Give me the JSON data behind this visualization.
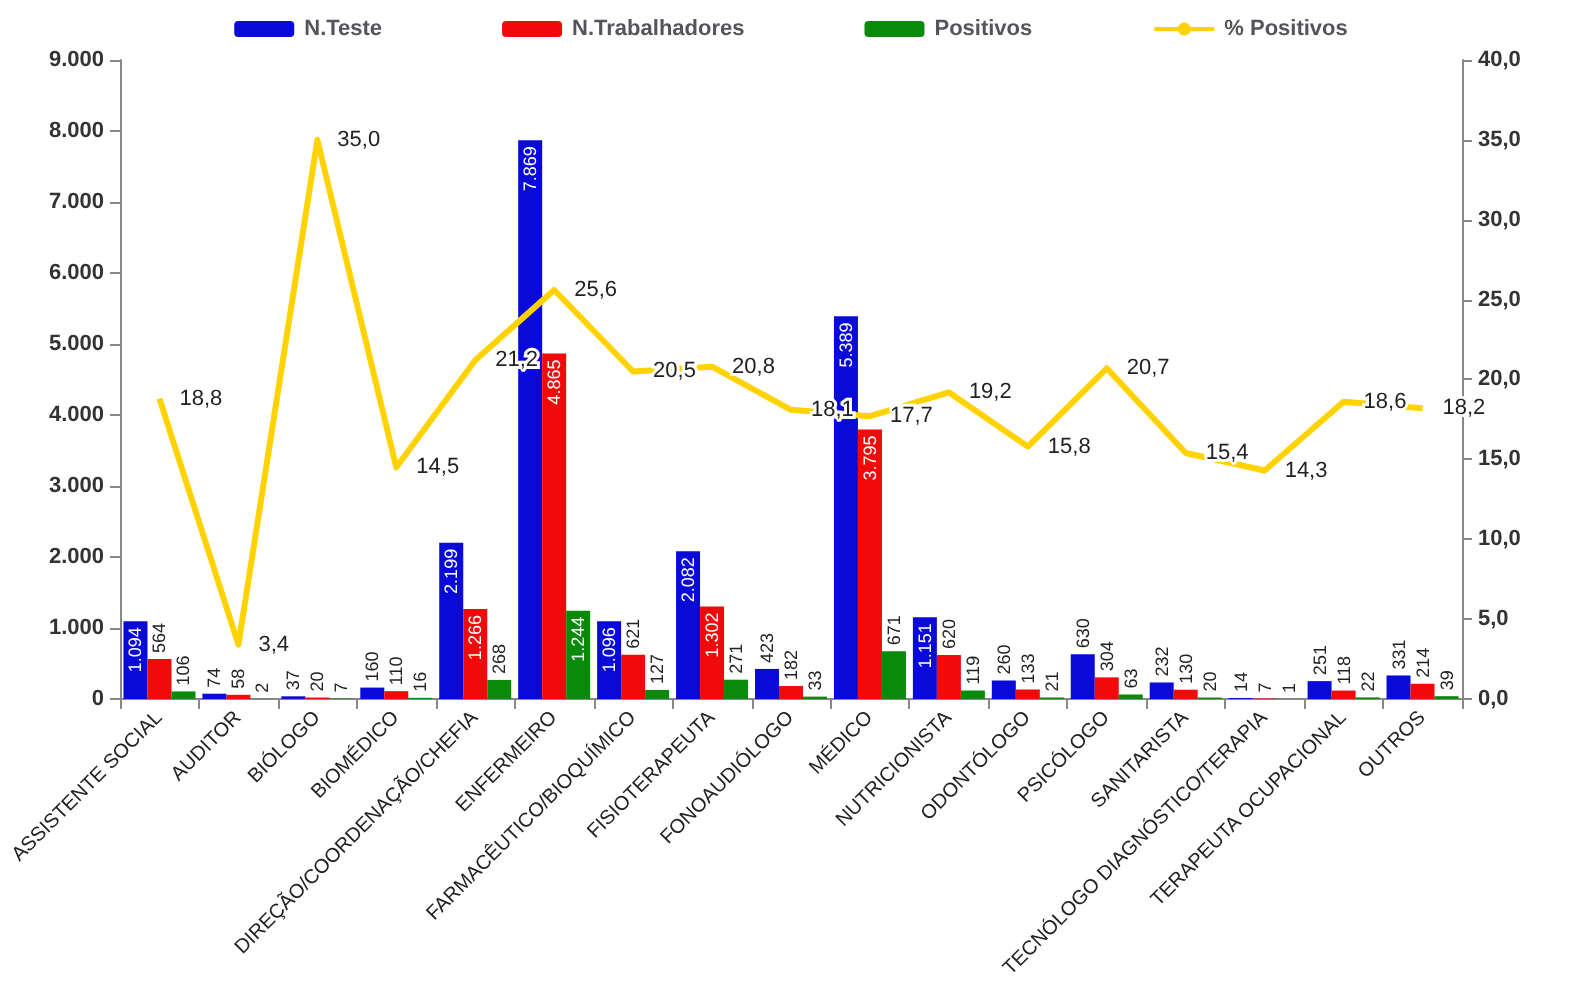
{
  "chart_data": {
    "type": "bar",
    "categories": [
      "ASSISTENTE SOCIAL",
      "AUDITOR",
      "BIÓLOGO",
      "BIOMÉDICO",
      "DIREÇÃO/COORDENAÇÃO/CHEFIA",
      "ENFERMEIRO",
      "FARMACÊUTICO/BIOQUÍMICO",
      "FISIOTERAPEUTA",
      "FONOAUDIÓLOGO",
      "MÉDICO",
      "NUTRICIONISTA",
      "ODONTÓLOGO",
      "PSICÓLOGO",
      "SANITARISTA",
      "TECNÓLOGO DIAGNÓSTICO/TERAPIA",
      "TERAPEUTA OCUPACIONAL",
      "OUTROS"
    ],
    "series": [
      {
        "name": "N.Teste",
        "color": "#0a0ad8",
        "values": [
          1094,
          74,
          37,
          160,
          2199,
          7869,
          1096,
          2082,
          423,
          5389,
          1151,
          260,
          630,
          232,
          14,
          251,
          331
        ],
        "value_labels": [
          "1.094",
          "74",
          "37",
          "160",
          "2.199",
          "7.869",
          "1.096",
          "2.082",
          "423",
          "5.389",
          "1.151",
          "260",
          "630",
          "232",
          "14",
          "251",
          "331"
        ]
      },
      {
        "name": "N.Trabalhadores",
        "color": "#f00a0a",
        "values": [
          564,
          58,
          20,
          110,
          1266,
          4865,
          621,
          1302,
          182,
          3795,
          620,
          133,
          304,
          130,
          7,
          118,
          214
        ],
        "value_labels": [
          "564",
          "58",
          "20",
          "110",
          "1.266",
          "4.865",
          "621",
          "1.302",
          "182",
          "3.795",
          "620",
          "133",
          "304",
          "130",
          "7",
          "118",
          "214"
        ]
      },
      {
        "name": "Positivos",
        "color": "#0a8a0a",
        "values": [
          106,
          2,
          7,
          16,
          268,
          1244,
          127,
          271,
          33,
          671,
          119,
          21,
          63,
          20,
          1,
          22,
          39
        ],
        "value_labels": [
          "106",
          "2",
          "7",
          "16",
          "268",
          "1.244",
          "127",
          "271",
          "33",
          "671",
          "119",
          "21",
          "63",
          "20",
          "1",
          "22",
          "39"
        ]
      },
      {
        "name": "% Positivos",
        "type": "line",
        "axis": "y2",
        "color": "#ffd200",
        "values": [
          18.8,
          3.4,
          35.0,
          14.5,
          21.2,
          25.6,
          20.5,
          20.8,
          18.1,
          17.7,
          19.2,
          15.8,
          20.7,
          15.4,
          14.3,
          18.6,
          18.2
        ],
        "value_labels": [
          "18,8",
          "3,4",
          "35,0",
          "14,5",
          "21,2",
          "25,6",
          "20,5",
          "20,8",
          "18,1",
          "17,7",
          "19,2",
          "15,8",
          "20,7",
          "15,4",
          "14,3",
          "18,6",
          "18,2"
        ]
      }
    ],
    "ylim": [
      0,
      9000
    ],
    "yticks": [
      {
        "value": 0,
        "label": "0"
      },
      {
        "value": 1000,
        "label": "1.000"
      },
      {
        "value": 2000,
        "label": "2.000"
      },
      {
        "value": 3000,
        "label": "3.000"
      },
      {
        "value": 4000,
        "label": "4.000"
      },
      {
        "value": 5000,
        "label": "5.000"
      },
      {
        "value": 6000,
        "label": "6.000"
      },
      {
        "value": 7000,
        "label": "7.000"
      },
      {
        "value": 8000,
        "label": "8.000"
      },
      {
        "value": 9000,
        "label": "9.000"
      }
    ],
    "y2lim": [
      0,
      40
    ],
    "y2ticks": [
      {
        "value": 0,
        "label": "0,0"
      },
      {
        "value": 5,
        "label": "5,0"
      },
      {
        "value": 10,
        "label": "10,0"
      },
      {
        "value": 15,
        "label": "15,0"
      },
      {
        "value": 20,
        "label": "20,0"
      },
      {
        "value": 25,
        "label": "25,0"
      },
      {
        "value": 30,
        "label": "30,0"
      },
      {
        "value": 35,
        "label": "35,0"
      },
      {
        "value": 40,
        "label": "40,0"
      }
    ],
    "legend": "top",
    "marker": "none"
  }
}
